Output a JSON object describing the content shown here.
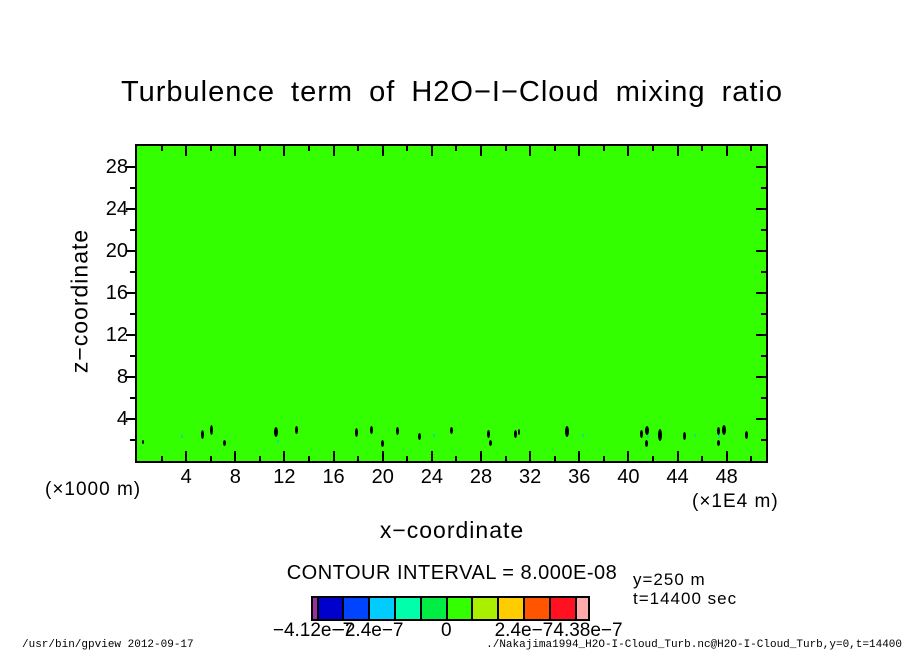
{
  "chart_data": {
    "type": "contour",
    "title": "Turbulence term of H2O−I−Cloud mixing ratio",
    "xlabel": "x−coordinate",
    "ylabel": "z−coordinate",
    "xlim": [
      0,
      51.2
    ],
    "ylim": [
      0,
      30
    ],
    "x_major_ticks": [
      4,
      8,
      12,
      16,
      20,
      24,
      28,
      32,
      36,
      40,
      44,
      48
    ],
    "x_minor_step": 2,
    "y_major_ticks": [
      4,
      8,
      12,
      16,
      20,
      24,
      28
    ],
    "y_minor_step": 2,
    "grid": false,
    "contour_interval": 8e-08,
    "value_min": -4.12e-07,
    "value_max": 4.38e-07,
    "background_fill_color": "#33ff00",
    "level_boundaries": [
      -4.12e-07,
      -4e-07,
      -3.2e-07,
      -2.4e-07,
      -1.6e-07,
      -8e-08,
      0,
      8e-08,
      1.6e-07,
      2.4e-07,
      3.2e-07,
      4e-07,
      4.38e-07
    ],
    "level_colors": [
      "#993399",
      "#0000cc",
      "#0044ff",
      "#00ccff",
      "#00ffaa",
      "#00ee44",
      "#33ff00",
      "#aaee00",
      "#ffcc00",
      "#ff5500",
      "#ff1122",
      "#ffaaaa"
    ],
    "field_note": "Field is in the 0 to 8e-8 band (uniform bright green) everywhere except tiny near-surface anomaly specks at z of about 1.5 to 3",
    "anomalies": {
      "negative_black": [
        [
          0.5,
          1.8,
          2,
          4
        ],
        [
          5.3,
          2.5,
          3,
          9
        ],
        [
          6.1,
          3.0,
          3,
          10
        ],
        [
          7.1,
          1.7,
          3,
          6
        ],
        [
          11.3,
          2.8,
          4,
          10
        ],
        [
          13.0,
          3.0,
          3,
          8
        ],
        [
          17.9,
          2.7,
          3,
          9
        ],
        [
          19.1,
          3.0,
          3,
          8
        ],
        [
          20.0,
          1.7,
          3,
          7
        ],
        [
          21.2,
          2.9,
          3,
          8
        ],
        [
          23.0,
          2.3,
          3,
          7
        ],
        [
          25.6,
          2.9,
          3,
          7
        ],
        [
          28.6,
          2.6,
          3,
          8
        ],
        [
          28.8,
          1.7,
          3,
          6
        ],
        [
          30.8,
          2.6,
          3,
          8
        ],
        [
          31.1,
          2.8,
          2,
          6
        ],
        [
          35.0,
          2.8,
          4,
          11
        ],
        [
          41.1,
          2.6,
          3,
          8
        ],
        [
          41.5,
          2.9,
          4,
          9
        ],
        [
          41.5,
          1.7,
          3,
          7
        ],
        [
          42.6,
          2.5,
          4,
          12
        ],
        [
          44.6,
          2.4,
          3,
          8
        ],
        [
          47.3,
          2.9,
          3,
          8
        ],
        [
          47.8,
          3.0,
          4,
          10
        ],
        [
          47.3,
          1.7,
          3,
          6
        ],
        [
          49.6,
          2.5,
          3,
          8
        ]
      ],
      "weak_cyan": [
        [
          3.7,
          2.3,
          2,
          3
        ],
        [
          11.5,
          1.9,
          2,
          3
        ],
        [
          24.2,
          2.4,
          2,
          3
        ],
        [
          36.3,
          2.4,
          2,
          3
        ],
        [
          41.6,
          2.3,
          2,
          3
        ],
        [
          45.4,
          2.4,
          2,
          3
        ],
        [
          47.4,
          2.3,
          2,
          3
        ]
      ]
    }
  },
  "axis_units": {
    "x": "(×1E4 m)",
    "y": "(×1000 m)"
  },
  "legend": {
    "contour_interval_text": "CONTOUR INTERVAL = 8.000E-08",
    "bar_labels": [
      {
        "text": "−4.12e−7",
        "value": -4.12e-07
      },
      {
        "text": "−2.4e−7",
        "value": -2.4e-07
      },
      {
        "text": "0",
        "value": 0
      },
      {
        "text": "2.4e−7",
        "value": 2.4e-07
      },
      {
        "text": "4.38e−7",
        "value": 4.38e-07
      }
    ],
    "notes": [
      "y=250 m",
      "t=14400 sec"
    ]
  },
  "footer": {
    "left": "/usr/bin/gpview  2012-09-17",
    "right": "./Nakajima1994_H2O-I-Cloud_Turb.nc@H2O-I-Cloud_Turb,y=0,t=14400"
  }
}
